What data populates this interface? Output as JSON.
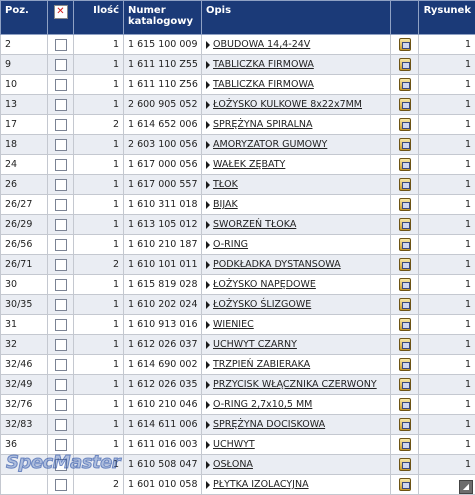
{
  "header": {
    "poz": "Poz.",
    "ilosc": "Ilość",
    "numer": "Numer katalogowy",
    "opis": "Opis",
    "rysunek": "Rysunek"
  },
  "rows": [
    {
      "poz": "2",
      "ilosc": "1",
      "numer": "1 615 100 009",
      "opis": "OBUDOWA 14,4-24V",
      "rysunek": "1"
    },
    {
      "poz": "9",
      "ilosc": "1",
      "numer": "1 611 110 Z55",
      "opis": "TABLICZKA FIRMOWA",
      "rysunek": "1"
    },
    {
      "poz": "10",
      "ilosc": "1",
      "numer": "1 611 110 Z56",
      "opis": "TABLICZKA FIRMOWA",
      "rysunek": "1"
    },
    {
      "poz": "13",
      "ilosc": "1",
      "numer": "2 600 905 052",
      "opis": "ŁOŻYSKO KULKOWE 8x22x7MM",
      "rysunek": "1"
    },
    {
      "poz": "17",
      "ilosc": "2",
      "numer": "1 614 652 006",
      "opis": "SPRĘŻYNA SPIRALNA",
      "rysunek": "1"
    },
    {
      "poz": "18",
      "ilosc": "1",
      "numer": "2 603 100 056",
      "opis": "AMORYZATOR GUMOWY",
      "rysunek": "1"
    },
    {
      "poz": "24",
      "ilosc": "1",
      "numer": "1 617 000 056",
      "opis": "WAŁEK ZĘBATY",
      "rysunek": "1"
    },
    {
      "poz": "26",
      "ilosc": "1",
      "numer": "1 617 000 557",
      "opis": "TŁOK",
      "rysunek": "1"
    },
    {
      "poz": "26/27",
      "ilosc": "1",
      "numer": "1 610 311 018",
      "opis": "BIJAK",
      "rysunek": "1"
    },
    {
      "poz": "26/29",
      "ilosc": "1",
      "numer": "1 613 105 012",
      "opis": "SWORZEŃ TŁOKA",
      "rysunek": "1"
    },
    {
      "poz": "26/56",
      "ilosc": "1",
      "numer": "1 610 210 187",
      "opis": "O-RING",
      "rysunek": "1"
    },
    {
      "poz": "26/71",
      "ilosc": "2",
      "numer": "1 610 101 011",
      "opis": "PODKŁADKA DYSTANSOWA",
      "rysunek": "1"
    },
    {
      "poz": "30",
      "ilosc": "1",
      "numer": "1 615 819 028",
      "opis": "ŁOŻYSKO NAPĘDOWE",
      "rysunek": "1"
    },
    {
      "poz": "30/35",
      "ilosc": "1",
      "numer": "1 610 202 024",
      "opis": "ŁOŻYSKO ŚLIZGOWE",
      "rysunek": "1"
    },
    {
      "poz": "31",
      "ilosc": "1",
      "numer": "1 610 913 016",
      "opis": "WIENIEC",
      "rysunek": "1"
    },
    {
      "poz": "32",
      "ilosc": "1",
      "numer": "1 612 026 037",
      "opis": "UCHWYT CZARNY",
      "rysunek": "1"
    },
    {
      "poz": "32/46",
      "ilosc": "1",
      "numer": "1 614 690 002",
      "opis": "TRZPIEŃ ZABIERAKA",
      "rysunek": "1"
    },
    {
      "poz": "32/49",
      "ilosc": "1",
      "numer": "1 612 026 035",
      "opis": "PRZYCISK WŁĄCZNIKA CZERWONY",
      "rysunek": "1"
    },
    {
      "poz": "32/76",
      "ilosc": "1",
      "numer": "1 610 210 046",
      "opis": "O-RING 2,7x10,5 MM",
      "rysunek": "1"
    },
    {
      "poz": "32/83",
      "ilosc": "1",
      "numer": "1 614 611 006",
      "opis": "SPRĘŻYNA DOCISKOWA",
      "rysunek": "1"
    },
    {
      "poz": "36",
      "ilosc": "1",
      "numer": "1 611 016 003",
      "opis": "UCHWYT",
      "rysunek": "1"
    },
    {
      "poz": "",
      "ilosc": "1",
      "numer": "1 610 508 047",
      "opis": "OSŁONA",
      "rysunek": "1"
    },
    {
      "poz": "",
      "ilosc": "2",
      "numer": "1 601 010 058",
      "opis": "PŁYTKA IZOLACYJNA",
      "rysunek": "1"
    }
  ],
  "watermark": "SpecMaster",
  "colors": {
    "header_bg": "#1b3a78",
    "row_alt": "#eaedf3",
    "x_icon": "#d42020"
  }
}
